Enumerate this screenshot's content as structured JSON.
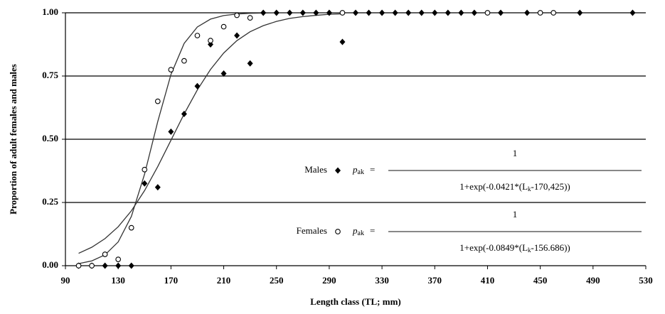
{
  "chart_data": {
    "type": "scatter",
    "x_label": "Length class (TL; mm)",
    "y_label": "Proportion of adult females and males",
    "xlim": [
      90,
      530
    ],
    "xticks": [
      90,
      130,
      170,
      210,
      250,
      290,
      330,
      370,
      410,
      450,
      490,
      530
    ],
    "ylim": [
      0,
      1
    ],
    "yticks": [
      {
        "value": 0,
        "label": "0.00"
      },
      {
        "value": 0.25,
        "label": "0.25"
      },
      {
        "value": 0.5,
        "label": "0.50"
      },
      {
        "value": 0.75,
        "label": "0.75"
      },
      {
        "value": 1,
        "label": "1.00"
      }
    ],
    "grid": true,
    "series": [
      {
        "name": "Males",
        "color": "#000000",
        "marker": "diamond",
        "x": [
          100,
          110,
          120,
          130,
          140,
          150,
          160,
          170,
          180,
          190,
          200,
          210,
          220,
          230,
          240,
          250,
          260,
          270,
          280,
          290,
          300,
          310,
          320,
          330,
          340,
          350,
          360,
          370,
          380,
          390,
          400,
          420,
          440,
          480,
          520
        ],
        "values": [
          0,
          0,
          0,
          0,
          0,
          0.325,
          0.31,
          0.53,
          0.6,
          0.71,
          0.875,
          0.76,
          0.91,
          0.8,
          1,
          1,
          1,
          1,
          1,
          1,
          0.885,
          1,
          1,
          1,
          1,
          1,
          1,
          1,
          1,
          1,
          1,
          1,
          1,
          1,
          1
        ]
      },
      {
        "name": "Females",
        "color": "#000000",
        "marker": "circle",
        "x": [
          100,
          110,
          120,
          130,
          140,
          150,
          160,
          170,
          180,
          190,
          200,
          210,
          220,
          230,
          300,
          410,
          450,
          460
        ],
        "values": [
          0,
          0,
          0.045,
          0.025,
          0.15,
          0.38,
          0.65,
          0.775,
          0.81,
          0.91,
          0.89,
          0.945,
          0.99,
          0.98,
          1,
          1,
          1,
          1
        ]
      }
    ],
    "fits": [
      {
        "color": "#333333",
        "x": [
          100,
          110,
          120,
          130,
          140,
          150,
          160,
          170,
          180,
          190,
          200,
          210,
          220,
          230,
          240,
          250,
          260,
          270,
          280,
          290,
          300
        ],
        "values": [
          0.049,
          0.073,
          0.107,
          0.154,
          0.217,
          0.297,
          0.392,
          0.496,
          0.6,
          0.695,
          0.776,
          0.841,
          0.89,
          0.925,
          0.949,
          0.966,
          0.978,
          0.985,
          0.99,
          0.994,
          0.996
        ]
      },
      {
        "color": "#333333",
        "x": [
          100,
          110,
          120,
          130,
          140,
          150,
          160,
          170,
          180,
          190,
          200,
          210,
          220,
          230,
          240,
          250,
          260,
          270,
          280,
          290,
          300
        ],
        "values": [
          0.008,
          0.019,
          0.043,
          0.094,
          0.195,
          0.362,
          0.57,
          0.756,
          0.879,
          0.944,
          0.975,
          0.989,
          0.995,
          0.998,
          0.999,
          1,
          1,
          1,
          1,
          1,
          1
        ]
      }
    ],
    "annotations": [
      {
        "label": "Males",
        "symbol": "p",
        "subscript": "ak",
        "equals": "=",
        "numerator": "1",
        "denominator": [
          "1+exp(-0.0421*(L",
          "k",
          "-170,425))"
        ]
      },
      {
        "label": "Females",
        "symbol": "p",
        "subscript": "ak",
        "equals": "=",
        "numerator": "1",
        "denominator": [
          "1+exp(-0.0849*(L",
          "k",
          "-156.686))"
        ]
      }
    ]
  }
}
